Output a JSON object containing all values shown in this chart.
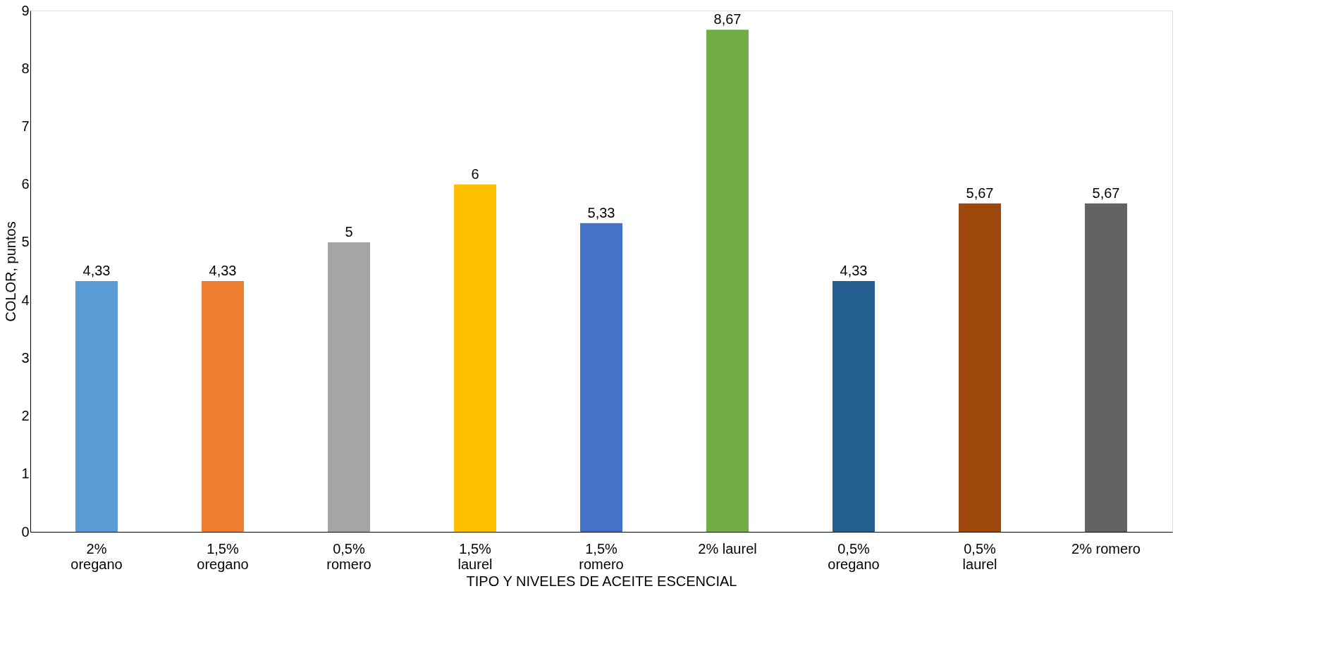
{
  "chart_data": {
    "type": "bar",
    "xlabel": "TIPO Y NIVELES DE ACEITE ESCENCIAL",
    "ylabel": "COLOR, puntos",
    "categories": [
      "2% oregano",
      "1,5% oregano",
      "0,5% romero",
      "1,5% laurel",
      "1,5% romero",
      "2% laurel",
      "0,5% oregano",
      "0,5% laurel",
      "2% romero"
    ],
    "values": [
      4.33,
      4.33,
      5,
      6,
      5.33,
      8.67,
      4.33,
      5.67,
      5.67
    ],
    "value_labels": [
      "4,33",
      "4,33",
      "5",
      "6",
      "5,33",
      "8,67",
      "4,33",
      "5,67",
      "5,67"
    ],
    "colors": [
      "#5b9bd5",
      "#ed7d31",
      "#a5a5a5",
      "#ffc000",
      "#4472c4",
      "#70ad47",
      "#255e91",
      "#9e480e",
      "#636363"
    ],
    "ylim": [
      0,
      9
    ],
    "yticks": [
      0,
      1,
      2,
      3,
      4,
      5,
      6,
      7,
      8,
      9
    ],
    "grid": false,
    "legend": false
  }
}
